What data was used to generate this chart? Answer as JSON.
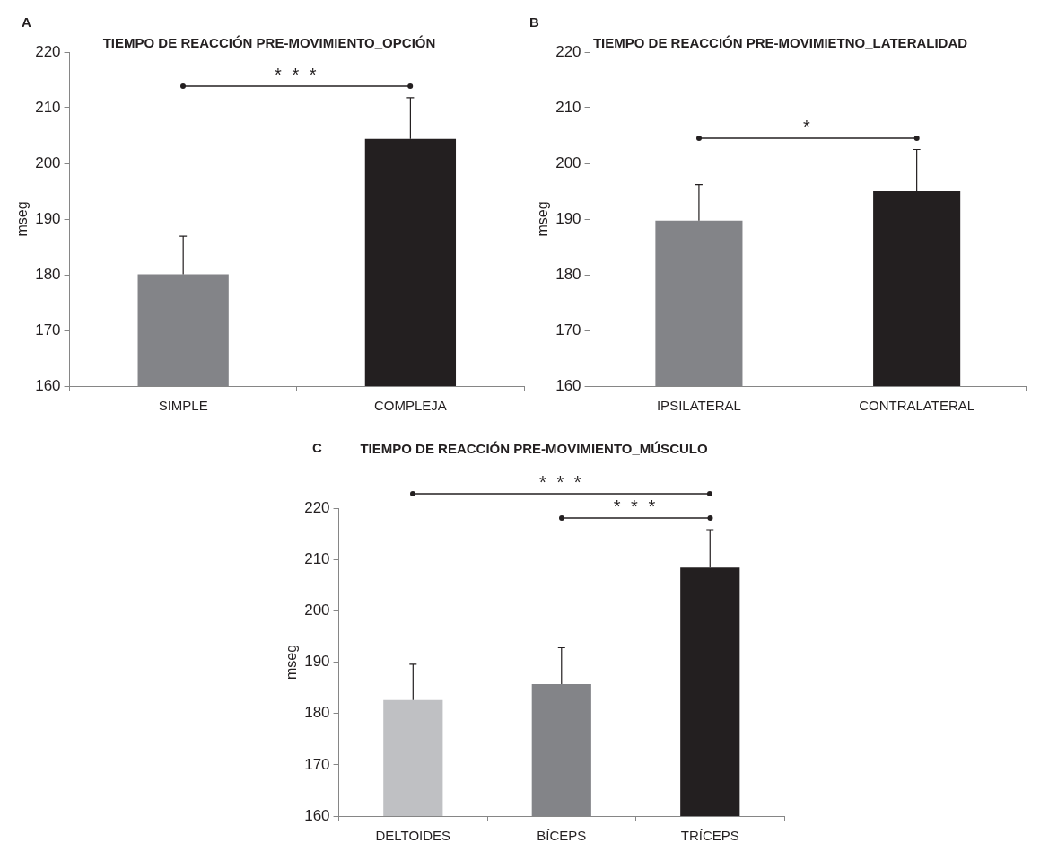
{
  "chart_data": [
    {
      "type": "bar",
      "title": "TIEMPO DE REACCIÓN PRE-MOVIMIENTO_OPCIÓN",
      "ylabel": "mseg",
      "categories": [
        "SIMPLE",
        "COMPLEJA"
      ],
      "values": [
        180.1,
        204.4
      ],
      "errors": [
        6.8,
        7.4
      ],
      "colors": [
        "#838488",
        "#231f20"
      ],
      "ylim": [
        160,
        220
      ],
      "yticks": [
        160,
        170,
        180,
        190,
        200,
        210,
        220
      ],
      "annotations": [
        "A",
        "* * *"
      ]
    },
    {
      "type": "bar",
      "title": "TIEMPO DE REACCIÓN PRE-MOVIMIETNO_LATERALIDAD",
      "ylabel": "mseg",
      "categories": [
        "IPSILATERAL",
        "CONTRALATERAL"
      ],
      "values": [
        189.7,
        195.0
      ],
      "errors": [
        6.5,
        7.5
      ],
      "colors": [
        "#838488",
        "#231f20"
      ],
      "ylim": [
        160,
        220
      ],
      "yticks": [
        160,
        170,
        180,
        190,
        200,
        210,
        220
      ],
      "annotations": [
        "B",
        "*"
      ]
    },
    {
      "type": "bar",
      "title": "TIEMPO DE REACCIÓN PRE-MOVIMIENTO_MÚSCULO",
      "ylabel": "mseg",
      "categories": [
        "DELTOIDES",
        "BÍCEPS",
        "TRÍCEPS"
      ],
      "values": [
        182.6,
        185.7,
        208.4
      ],
      "errors": [
        7.0,
        7.1,
        7.4
      ],
      "colors": [
        "#bfc0c3",
        "#838488",
        "#231f20"
      ],
      "ylim": [
        160,
        220
      ],
      "yticks": [
        160,
        170,
        180,
        190,
        200,
        210,
        220
      ],
      "annotations": [
        "C",
        "* * *",
        "* * *"
      ]
    }
  ]
}
